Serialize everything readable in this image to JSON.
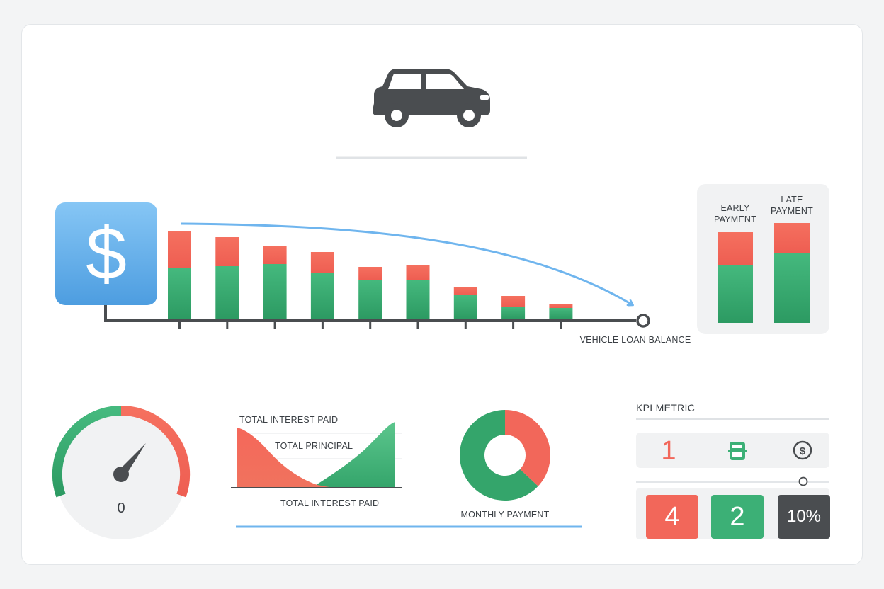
{
  "colors": {
    "green": "#3cb076",
    "green_dark": "#2e9e64",
    "red": "#f2675a",
    "blue": "#6fb5ee",
    "dark": "#4a4d50",
    "panel": "#f1f2f3"
  },
  "icons": {
    "car": "car-icon",
    "dollar": "dollar-icon",
    "kpi_middle": "printer-icon",
    "kpi_right": "dollar-circle-icon"
  },
  "labels": {
    "dollar_symbol": "$",
    "vehicle_loan_balance": "VEHICLE LOAN BALANCE",
    "total_interest_paid_top": "TOTAL INTEREST PAID",
    "total_principal": "TOTAL PRINCIPAL",
    "total_interest_paid_bottom": "TOTAL INTEREST PAID",
    "monthly_payment": "MONTHLY PAYMENT",
    "kpi_metric": "KPI METRIC"
  },
  "chart_data": [
    {
      "type": "bar",
      "stacked": true,
      "name": "loan-balance-bars",
      "values_note_free": true,
      "series": [
        {
          "color": "green",
          "values": [
            72,
            75,
            78,
            65,
            56,
            56,
            34,
            18,
            16
          ]
        },
        {
          "color": "red",
          "values": [
            52,
            41,
            25,
            30,
            18,
            20,
            12,
            15,
            6
          ]
        }
      ],
      "label": "VEHICLE LOAN BALANCE"
    },
    {
      "type": "bar",
      "stacked": true,
      "name": "early-late-comparison",
      "categories": [
        "EARLY PAYMENT",
        "LATE PAYMENT"
      ],
      "category_lines": [
        [
          "EARLY",
          "PAYMENT"
        ],
        [
          "LATE",
          "PAYMENT"
        ]
      ],
      "series": [
        {
          "color": "green",
          "values": [
            82,
            99
          ]
        },
        {
          "color": "red",
          "values": [
            46,
            42
          ]
        }
      ]
    },
    {
      "type": "gauge",
      "name": "gauge",
      "value": 0,
      "display_value": "0"
    },
    {
      "type": "area",
      "name": "interest-principal-area",
      "series": [
        {
          "name": "TOTAL INTEREST PAID",
          "color": "red",
          "values": [
            85,
            70,
            48,
            28,
            14,
            6,
            2,
            0
          ]
        },
        {
          "name": "TOTAL PRINCIPAL",
          "color": "green",
          "values": [
            0,
            1,
            4,
            12,
            30,
            55,
            80,
            92
          ]
        }
      ],
      "annotations": [
        "TOTAL INTEREST PAID",
        "TOTAL PRINCIPAL",
        "TOTAL INTEREST PAID"
      ]
    },
    {
      "type": "pie",
      "donut": true,
      "name": "monthly-payment-donut",
      "slices": [
        {
          "color": "red",
          "value": 37
        },
        {
          "color": "green",
          "value": 63
        }
      ],
      "label": "MONTHLY PAYMENT"
    }
  ],
  "kpi": {
    "title": "KPI METRIC",
    "row1_value": "1",
    "tiles": [
      {
        "value": "4",
        "color": "red"
      },
      {
        "value": "2",
        "color": "green"
      },
      {
        "value": "10%",
        "color": "dark"
      }
    ]
  }
}
